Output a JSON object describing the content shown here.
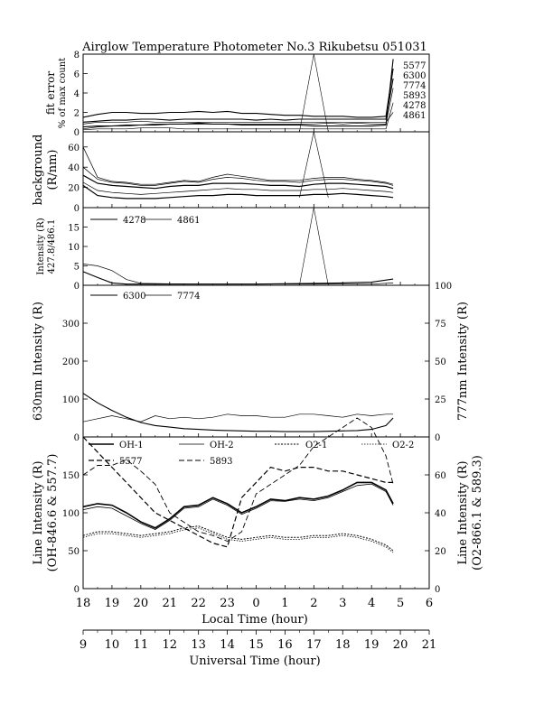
{
  "title": "Airglow Temperature Photometer No.3  Rikubetsu   051031",
  "local_axis": {
    "label": "Local Time (hour)",
    "ticks": [
      "18",
      "19",
      "20",
      "21",
      "22",
      "23",
      "0",
      "1",
      "2",
      "3",
      "4",
      "5",
      "6"
    ]
  },
  "ut_axis": {
    "label": "Universal Time (hour)",
    "ticks": [
      "9",
      "10",
      "11",
      "12",
      "13",
      "14",
      "15",
      "16",
      "17",
      "18",
      "19",
      "20",
      "21"
    ]
  },
  "chart_data": [
    {
      "id": "fit",
      "type": "line",
      "ylabel": [
        "fit error",
        "% of max count"
      ],
      "ylim": [
        0,
        8
      ],
      "yticks": [
        0,
        2,
        4,
        6,
        8
      ],
      "x": [
        18.0,
        18.5,
        19.0,
        19.5,
        20.0,
        20.5,
        21.0,
        21.5,
        22.0,
        22.5,
        23.0,
        23.5,
        24.0,
        24.5,
        25.0,
        25.5,
        26.0,
        26.5,
        27.0,
        27.5,
        28.0,
        28.5,
        28.75
      ],
      "series": [
        {
          "name": "5577",
          "values": [
            0.5,
            0.6,
            0.6,
            0.7,
            0.7,
            0.7,
            0.8,
            0.8,
            0.9,
            0.8,
            0.8,
            0.7,
            0.7,
            0.7,
            0.7,
            0.7,
            0.6,
            0.6,
            0.6,
            0.6,
            0.6,
            0.7,
            7.5
          ]
        },
        {
          "name": "6300",
          "values": [
            1.5,
            1.8,
            2.0,
            2.0,
            1.9,
            1.9,
            2.0,
            2.0,
            2.1,
            2.0,
            2.1,
            1.9,
            1.9,
            1.8,
            1.7,
            1.7,
            1.6,
            1.6,
            1.6,
            1.5,
            1.5,
            1.6,
            6.5
          ]
        },
        {
          "name": "7774",
          "values": [
            1.0,
            1.1,
            1.2,
            1.2,
            1.3,
            1.3,
            1.2,
            1.3,
            1.3,
            1.3,
            1.3,
            1.3,
            1.2,
            1.3,
            1.2,
            1.3,
            1.3,
            1.3,
            1.3,
            1.3,
            1.3,
            1.3,
            5.5
          ]
        },
        {
          "name": "5893",
          "values": [
            0.3,
            0.5,
            0.6,
            0.6,
            0.7,
            0.8,
            0.8,
            0.8,
            0.8,
            0.8,
            0.8,
            0.8,
            0.8,
            0.8,
            0.8,
            0.8,
            0.8,
            0.9,
            0.8,
            0.9,
            0.8,
            0.8,
            4.5
          ]
        },
        {
          "name": "4278",
          "values": [
            0.2,
            0.3,
            0.3,
            0.3,
            0.4,
            0.4,
            0.4,
            0.3,
            0.3,
            0.3,
            0.3,
            0.3,
            0.3,
            0.3,
            0.3,
            0.3,
            0.3,
            0.3,
            0.3,
            0.3,
            0.3,
            0.3,
            3.0
          ]
        },
        {
          "name": "4861",
          "values": [
            0.8,
            1.0,
            1.0,
            1.0,
            1.1,
            1.0,
            1.0,
            1.0,
            1.0,
            1.0,
            1.0,
            1.0,
            1.0,
            1.0,
            1.0,
            1.0,
            1.0,
            1.0,
            1.0,
            1.0,
            1.0,
            1.0,
            2.0
          ]
        },
        {
          "name": "",
          "values": [
            0,
            0,
            0,
            0,
            0,
            0,
            0,
            0,
            0,
            0,
            0,
            0,
            0,
            0,
            0,
            0,
            0,
            0,
            0,
            0,
            0,
            0,
            0
          ]
        }
      ],
      "spike": {
        "x": [
          25.5,
          26.0,
          26.5
        ],
        "y": [
          0,
          8,
          0
        ]
      },
      "labels": [
        "5577",
        "6300",
        "7774",
        "5893",
        "4278",
        "4861"
      ]
    },
    {
      "id": "bg",
      "type": "line",
      "ylabel": [
        "background",
        "(R/nm)"
      ],
      "ylim": [
        0,
        75
      ],
      "yticks": [
        0,
        20,
        40,
        60
      ],
      "x": [
        18.0,
        18.5,
        19.0,
        19.5,
        20.0,
        20.5,
        21.0,
        21.5,
        22.0,
        22.5,
        23.0,
        23.5,
        24.0,
        24.5,
        25.0,
        25.5,
        26.0,
        26.5,
        27.0,
        27.5,
        28.0,
        28.5,
        28.75
      ],
      "series": [
        {
          "name": "",
          "values": [
            40,
            28,
            25,
            24,
            22,
            22,
            24,
            26,
            25,
            28,
            30,
            29,
            27,
            26,
            26,
            25,
            27,
            28,
            28,
            27,
            26,
            24,
            22
          ]
        },
        {
          "name": "",
          "values": [
            32,
            24,
            22,
            21,
            20,
            19,
            21,
            22,
            22,
            24,
            24,
            24,
            23,
            22,
            22,
            21,
            23,
            24,
            24,
            23,
            22,
            21,
            19
          ]
        },
        {
          "name": "",
          "values": [
            25,
            17,
            15,
            14,
            13,
            14,
            15,
            16,
            17,
            18,
            19,
            18,
            18,
            17,
            17,
            17,
            18,
            18,
            19,
            18,
            17,
            16,
            15
          ]
        },
        {
          "name": "",
          "values": [
            22,
            12,
            10,
            9,
            9,
            9,
            10,
            11,
            12,
            12,
            13,
            13,
            12,
            12,
            12,
            12,
            13,
            13,
            14,
            13,
            12,
            11,
            10
          ]
        },
        {
          "name": "",
          "values": [
            60,
            30,
            26,
            25,
            23,
            23,
            25,
            27,
            26,
            30,
            33,
            31,
            29,
            27,
            27,
            27,
            29,
            30,
            30,
            28,
            27,
            25,
            23
          ]
        }
      ],
      "spike": {
        "x": [
          25.5,
          26.0,
          26.5
        ],
        "y": [
          10,
          75,
          10
        ]
      }
    },
    {
      "id": "blue",
      "type": "line",
      "ylabel": [
        "Intensity (R)",
        "427.8/486.1"
      ],
      "ylim": [
        0,
        20
      ],
      "yticks": [
        0,
        5,
        10,
        15
      ],
      "yticklabels": [
        "0",
        "5",
        "10",
        "15"
      ],
      "x": [
        18.0,
        18.5,
        19.0,
        19.5,
        20.0,
        21.0,
        22.0,
        23.0,
        24.0,
        25.0,
        26.0,
        27.0,
        28.0,
        28.75
      ],
      "series": [
        {
          "name": "4278",
          "values": [
            3.5,
            2.0,
            0.6,
            0.3,
            0.3,
            0.3,
            0.3,
            0.3,
            0.3,
            0.4,
            0.5,
            0.6,
            0.8,
            1.6
          ]
        },
        {
          "name": "4861",
          "values": [
            5.5,
            5.0,
            3.8,
            1.5,
            0.5,
            0.4,
            0.3,
            0.3,
            0.3,
            0.3,
            0.3,
            0.3,
            0.3,
            0.6
          ]
        }
      ],
      "spike": {
        "x": [
          25.5,
          26.0,
          26.5
        ],
        "y": [
          0,
          20,
          0
        ]
      },
      "legend": [
        "4278",
        "4861"
      ]
    },
    {
      "id": "red",
      "type": "line",
      "ylabel_left": "630nm Intensity (R)",
      "ylabel_right": "777nm Intensity (R)",
      "ylim_left": [
        0,
        400
      ],
      "ylim_right": [
        0,
        100
      ],
      "yticks_left": [
        0,
        100,
        200,
        300
      ],
      "yticks_right": [
        0,
        25,
        50,
        75,
        100
      ],
      "x": [
        18.0,
        18.5,
        19.0,
        19.5,
        20.0,
        20.5,
        21.0,
        21.5,
        22.0,
        22.5,
        23.0,
        23.5,
        24.0,
        24.5,
        25.0,
        25.5,
        26.0,
        26.5,
        27.0,
        27.5,
        28.0,
        28.5,
        28.75
      ],
      "series": [
        {
          "name": "6300",
          "axis": "left",
          "values": [
            115,
            90,
            70,
            52,
            38,
            30,
            26,
            22,
            20,
            18,
            17,
            16,
            15,
            15,
            14,
            14,
            14,
            15,
            16,
            17,
            20,
            30,
            50
          ]
        },
        {
          "name": "7774",
          "axis": "right",
          "values": [
            10,
            12,
            14,
            12,
            10,
            14,
            12,
            13,
            12,
            13,
            15,
            14,
            14,
            13,
            13,
            15,
            15,
            14,
            13,
            15,
            14,
            15,
            15
          ]
        }
      ],
      "legend": [
        "6300",
        "7774"
      ]
    },
    {
      "id": "oh",
      "type": "line",
      "ylabel_left": [
        "Line Intensity (R)",
        "(OH-846.6 & 557.7)"
      ],
      "ylabel_right": [
        "Line Intensity (R)",
        "(O2-866.1 & 589.3)"
      ],
      "ylim_left": [
        0,
        200
      ],
      "ylim_right": [
        0,
        80
      ],
      "yticks_left": [
        0,
        50,
        100,
        150
      ],
      "yticks_right": [
        0,
        20,
        40,
        60
      ],
      "x": [
        18.0,
        18.5,
        19.0,
        19.5,
        20.0,
        20.5,
        21.0,
        21.5,
        22.0,
        22.5,
        23.0,
        23.5,
        24.0,
        24.5,
        25.0,
        25.5,
        26.0,
        26.5,
        27.0,
        27.5,
        28.0,
        28.5,
        28.75
      ],
      "series": [
        {
          "name": "OH-1",
          "axis": "left",
          "values": [
            108,
            112,
            110,
            100,
            88,
            80,
            92,
            108,
            110,
            120,
            112,
            100,
            108,
            118,
            116,
            120,
            118,
            122,
            130,
            140,
            140,
            130,
            112
          ]
        },
        {
          "name": "OH-2",
          "axis": "left",
          "values": [
            104,
            108,
            106,
            96,
            86,
            78,
            90,
            106,
            108,
            118,
            110,
            98,
            106,
            116,
            115,
            118,
            116,
            120,
            128,
            136,
            138,
            128,
            110
          ]
        },
        {
          "name": "O2-1",
          "axis": "right",
          "values": [
            28,
            30,
            30,
            29,
            28,
            29,
            30,
            32,
            33,
            30,
            27,
            26,
            27,
            28,
            27,
            27,
            28,
            28,
            29,
            28,
            26,
            23,
            20
          ]
        },
        {
          "name": "O2-2",
          "axis": "right",
          "values": [
            27,
            29,
            29,
            28,
            27,
            28,
            29,
            31,
            32,
            29,
            26,
            25,
            26,
            27,
            26,
            26,
            27,
            27,
            28,
            27,
            25,
            22,
            19
          ]
        },
        {
          "name": "5577",
          "axis": "left",
          "values": [
            200,
            180,
            160,
            140,
            120,
            100,
            90,
            80,
            70,
            60,
            55,
            120,
            140,
            160,
            155,
            160,
            160,
            155,
            155,
            150,
            145,
            140,
            140
          ]
        },
        {
          "name": "5893",
          "axis": "right",
          "values": [
            60,
            65,
            65,
            68,
            62,
            55,
            40,
            35,
            30,
            28,
            25,
            30,
            50,
            55,
            60,
            65,
            75,
            80,
            85,
            90,
            85,
            70,
            55
          ]
        }
      ],
      "legend": [
        "OH-1",
        "OH-2",
        "O2-1",
        "O2-2",
        "5577",
        "5893"
      ]
    }
  ]
}
